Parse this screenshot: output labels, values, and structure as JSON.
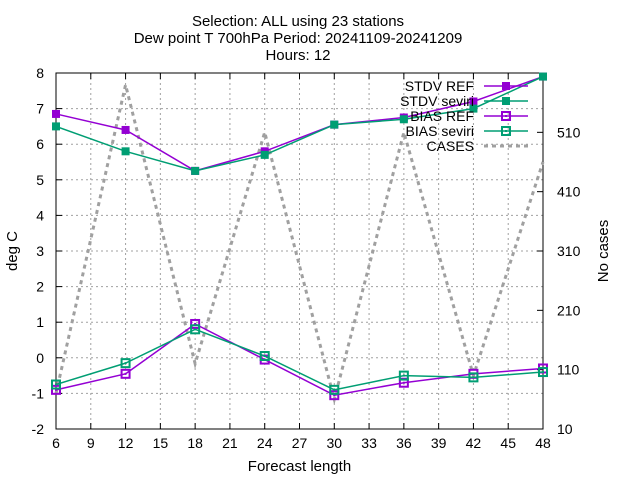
{
  "chart_data": {
    "type": "line",
    "title": [
      "Selection: ALL using    23 stations",
      "Dew point T 700hPa   Period: 20241109-20241209",
      "Hours: 12"
    ],
    "xlabel": "Forecast length",
    "ylabel": "deg C",
    "y2label": "No cases",
    "xlim": [
      6,
      48
    ],
    "ylim": [
      -2,
      8
    ],
    "y2lim": [
      10,
      610
    ],
    "xticks": [
      6,
      9,
      12,
      15,
      18,
      21,
      24,
      27,
      30,
      33,
      36,
      39,
      42,
      45,
      48
    ],
    "yticks": [
      -2,
      -1,
      0,
      1,
      2,
      3,
      4,
      5,
      6,
      7,
      8
    ],
    "y2ticks": [
      10,
      110,
      210,
      310,
      410,
      510
    ],
    "grid": true,
    "legend_position": "top-right",
    "x": [
      6,
      12,
      18,
      24,
      30,
      36,
      42,
      48
    ],
    "series": [
      {
        "name": "STDV REF",
        "axis": "y",
        "color": "#9400d3",
        "marker": "filled-square",
        "values": [
          6.85,
          6.4,
          5.25,
          5.8,
          6.55,
          6.75,
          7.2,
          7.9
        ]
      },
      {
        "name": "STDV seviri",
        "axis": "y",
        "color": "#009e73",
        "marker": "filled-square",
        "values": [
          6.5,
          5.8,
          5.25,
          5.7,
          6.55,
          6.7,
          7.0,
          7.9
        ]
      },
      {
        "name": "BIAS REF",
        "axis": "y",
        "color": "#9400d3",
        "marker": "open-square",
        "values": [
          -0.9,
          -0.45,
          0.95,
          -0.05,
          -1.05,
          -0.7,
          -0.45,
          -0.3
        ]
      },
      {
        "name": "BIAS seviri",
        "axis": "y",
        "color": "#009e73",
        "marker": "open-square",
        "values": [
          -0.75,
          -0.15,
          0.8,
          0.05,
          -0.9,
          -0.5,
          -0.55,
          -0.4
        ]
      },
      {
        "name": "CASES",
        "axis": "y2",
        "color": "#a0a0a0",
        "marker": "none",
        "dashed": true,
        "values": [
          70,
          590,
          120,
          510,
          60,
          510,
          100,
          460
        ]
      }
    ]
  }
}
